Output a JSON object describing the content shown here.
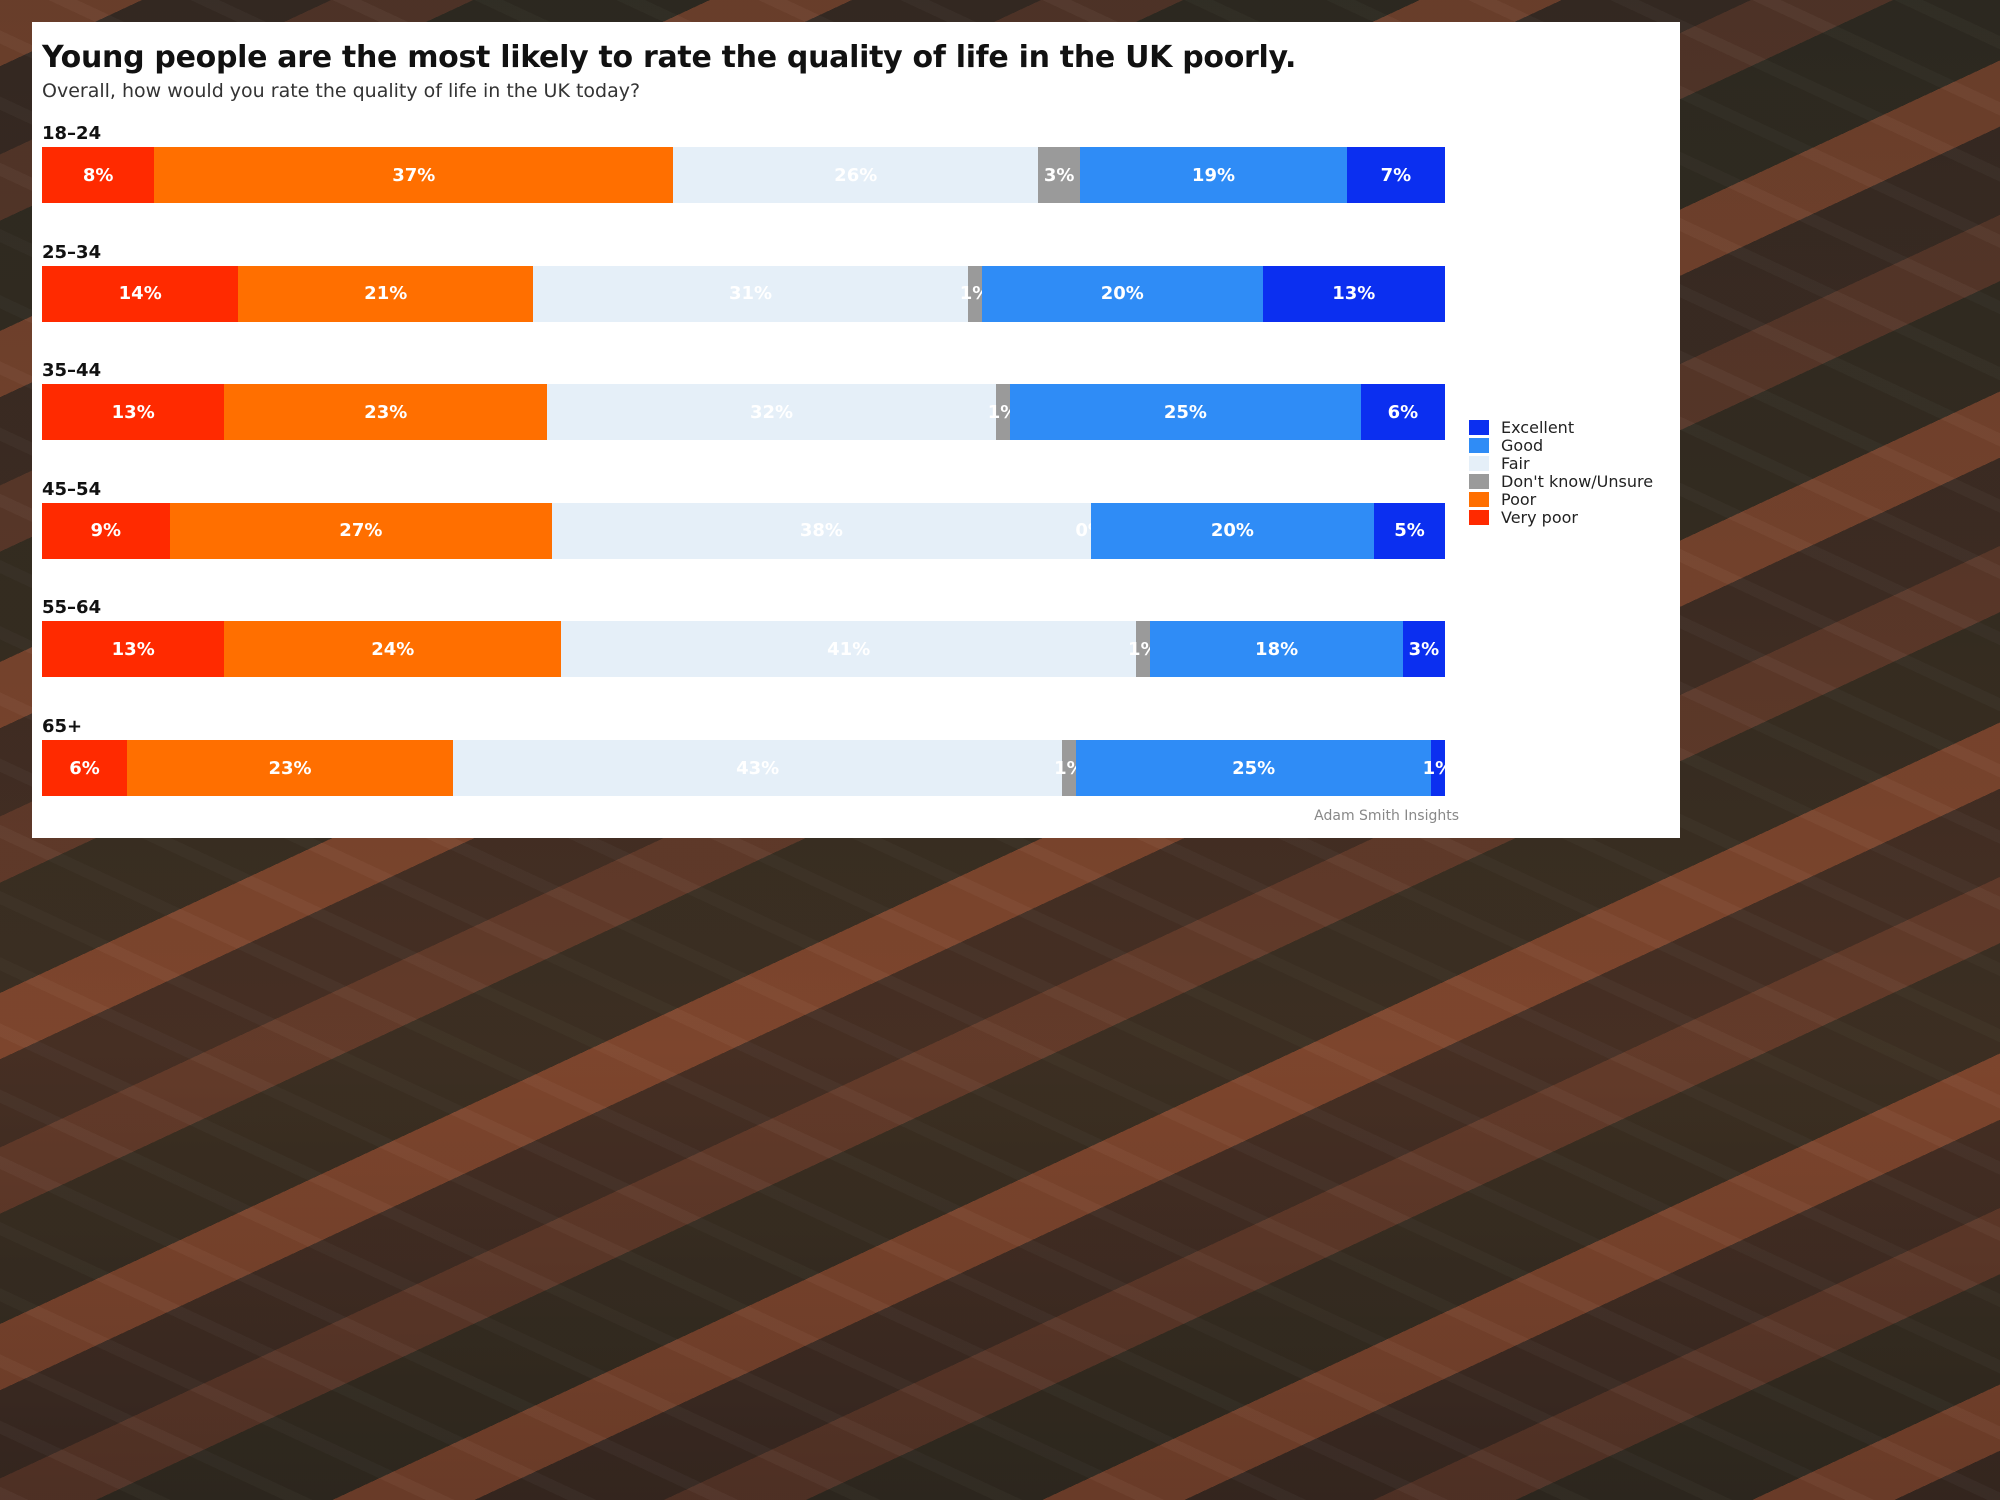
{
  "chart_data": {
    "type": "bar",
    "orientation": "horizontal",
    "stacked": true,
    "title": "Young people are the most likely to rate the quality of life in the UK poorly.",
    "subtitle": "Overall, how would you rate the quality of life in the UK today?",
    "source": "Adam Smith Insights",
    "categories": [
      "18–24",
      "25–34",
      "35–44",
      "45–54",
      "55–64",
      "65+"
    ],
    "series": [
      {
        "name": "Very poor",
        "color": "#ff2a00",
        "values": [
          8,
          14,
          13,
          9,
          13,
          6
        ]
      },
      {
        "name": "Poor",
        "color": "#ff6f00",
        "values": [
          37,
          21,
          23,
          27,
          24,
          23
        ]
      },
      {
        "name": "Fair",
        "color": "#e5eff8",
        "values": [
          26,
          31,
          32,
          38,
          41,
          43
        ]
      },
      {
        "name": "Don't know/Unsure",
        "color": "#9a9a9a",
        "values": [
          3,
          1,
          1,
          0,
          1,
          1
        ]
      },
      {
        "name": "Good",
        "color": "#2f8cf6",
        "values": [
          19,
          20,
          25,
          20,
          18,
          25
        ]
      },
      {
        "name": "Excellent",
        "color": "#0b2ff0",
        "values": [
          7,
          13,
          6,
          5,
          3,
          1
        ]
      }
    ],
    "value_suffix": "%",
    "legend_position": "right",
    "legend_order": [
      "Excellent",
      "Good",
      "Fair",
      "Don't know/Unsure",
      "Poor",
      "Very poor"
    ],
    "grid": false
  }
}
